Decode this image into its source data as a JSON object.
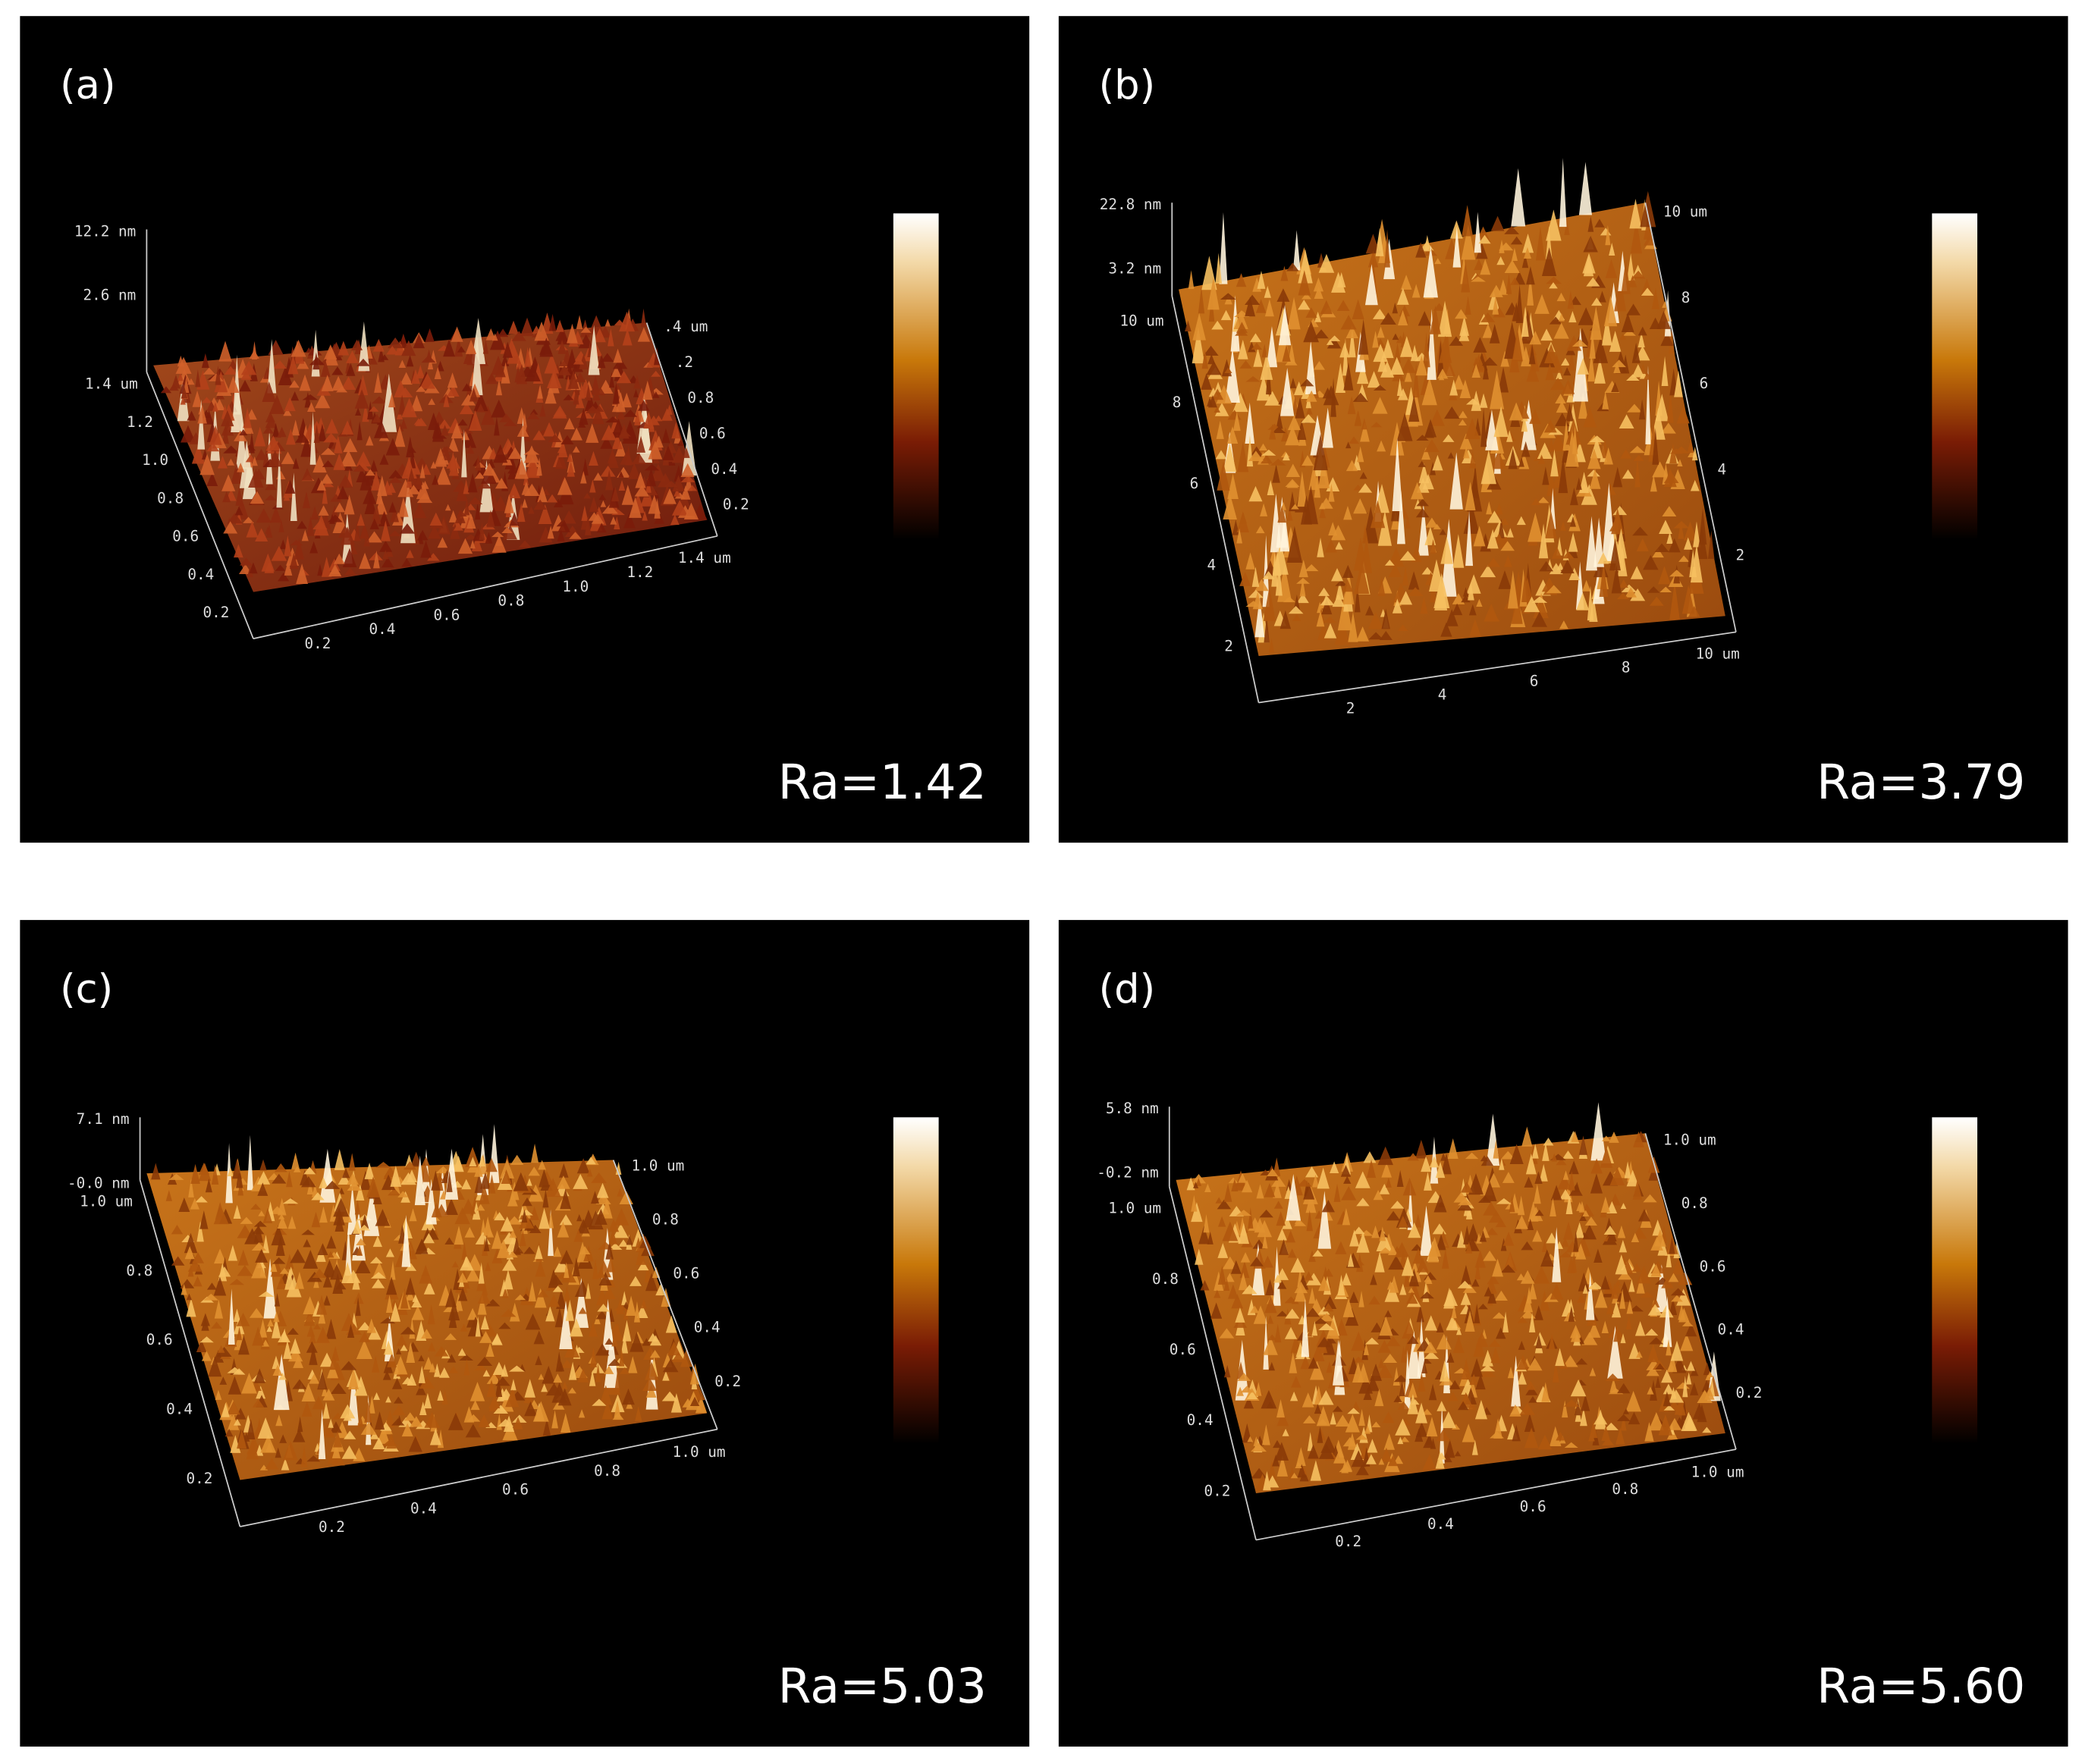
{
  "panels": [
    {
      "label": "(a)",
      "ra": "Ra=1.42",
      "z_labels": [
        "12.2 nm",
        "2.6 nm"
      ],
      "left_ticks": [
        "1.4 um",
        "1.2",
        "1.0",
        "0.8",
        "0.6",
        "0.4",
        "0.2"
      ],
      "bottom_ticks": [
        "0.2",
        "0.4",
        "0.6",
        "0.8",
        "1.0",
        "1.2",
        "1.4 um"
      ],
      "right_ticks": [
        ".4 um",
        ".2",
        "0.8",
        "0.6",
        "0.4",
        "0.2"
      ]
    },
    {
      "label": "(b)",
      "ra": "Ra=3.79",
      "z_labels": [
        "22.8 nm",
        "3.2 nm"
      ],
      "left_ticks": [
        "10 um",
        "8",
        "6",
        "4",
        "2"
      ],
      "bottom_ticks": [
        "2",
        "4",
        "6",
        "8",
        "10 um"
      ],
      "right_ticks": [
        "10 um",
        "8",
        "6",
        "4",
        "2"
      ]
    },
    {
      "label": "(c)",
      "ra": "Ra=5.03",
      "z_labels": [
        "7.1 nm",
        "-0.0 nm"
      ],
      "left_ticks": [
        "1.0 um",
        "0.8",
        "0.6",
        "0.4",
        "0.2"
      ],
      "bottom_ticks": [
        "0.2",
        "0.4",
        "0.6",
        "0.8",
        "1.0 um"
      ],
      "right_ticks": [
        "1.0 um",
        "0.8",
        "0.6",
        "0.4",
        "0.2"
      ]
    },
    {
      "label": "(d)",
      "ra": "Ra=5.60",
      "z_labels": [
        "5.8 nm",
        "-0.2 nm"
      ],
      "left_ticks": [
        "1.0 um",
        "0.8",
        "0.6",
        "0.4",
        "0.2"
      ],
      "bottom_ticks": [
        "0.2",
        "0.4",
        "0.6",
        "0.8",
        "1.0 um"
      ],
      "right_ticks": [
        "1.0 um",
        "0.8",
        "0.6",
        "0.4",
        "0.2"
      ]
    }
  ]
}
